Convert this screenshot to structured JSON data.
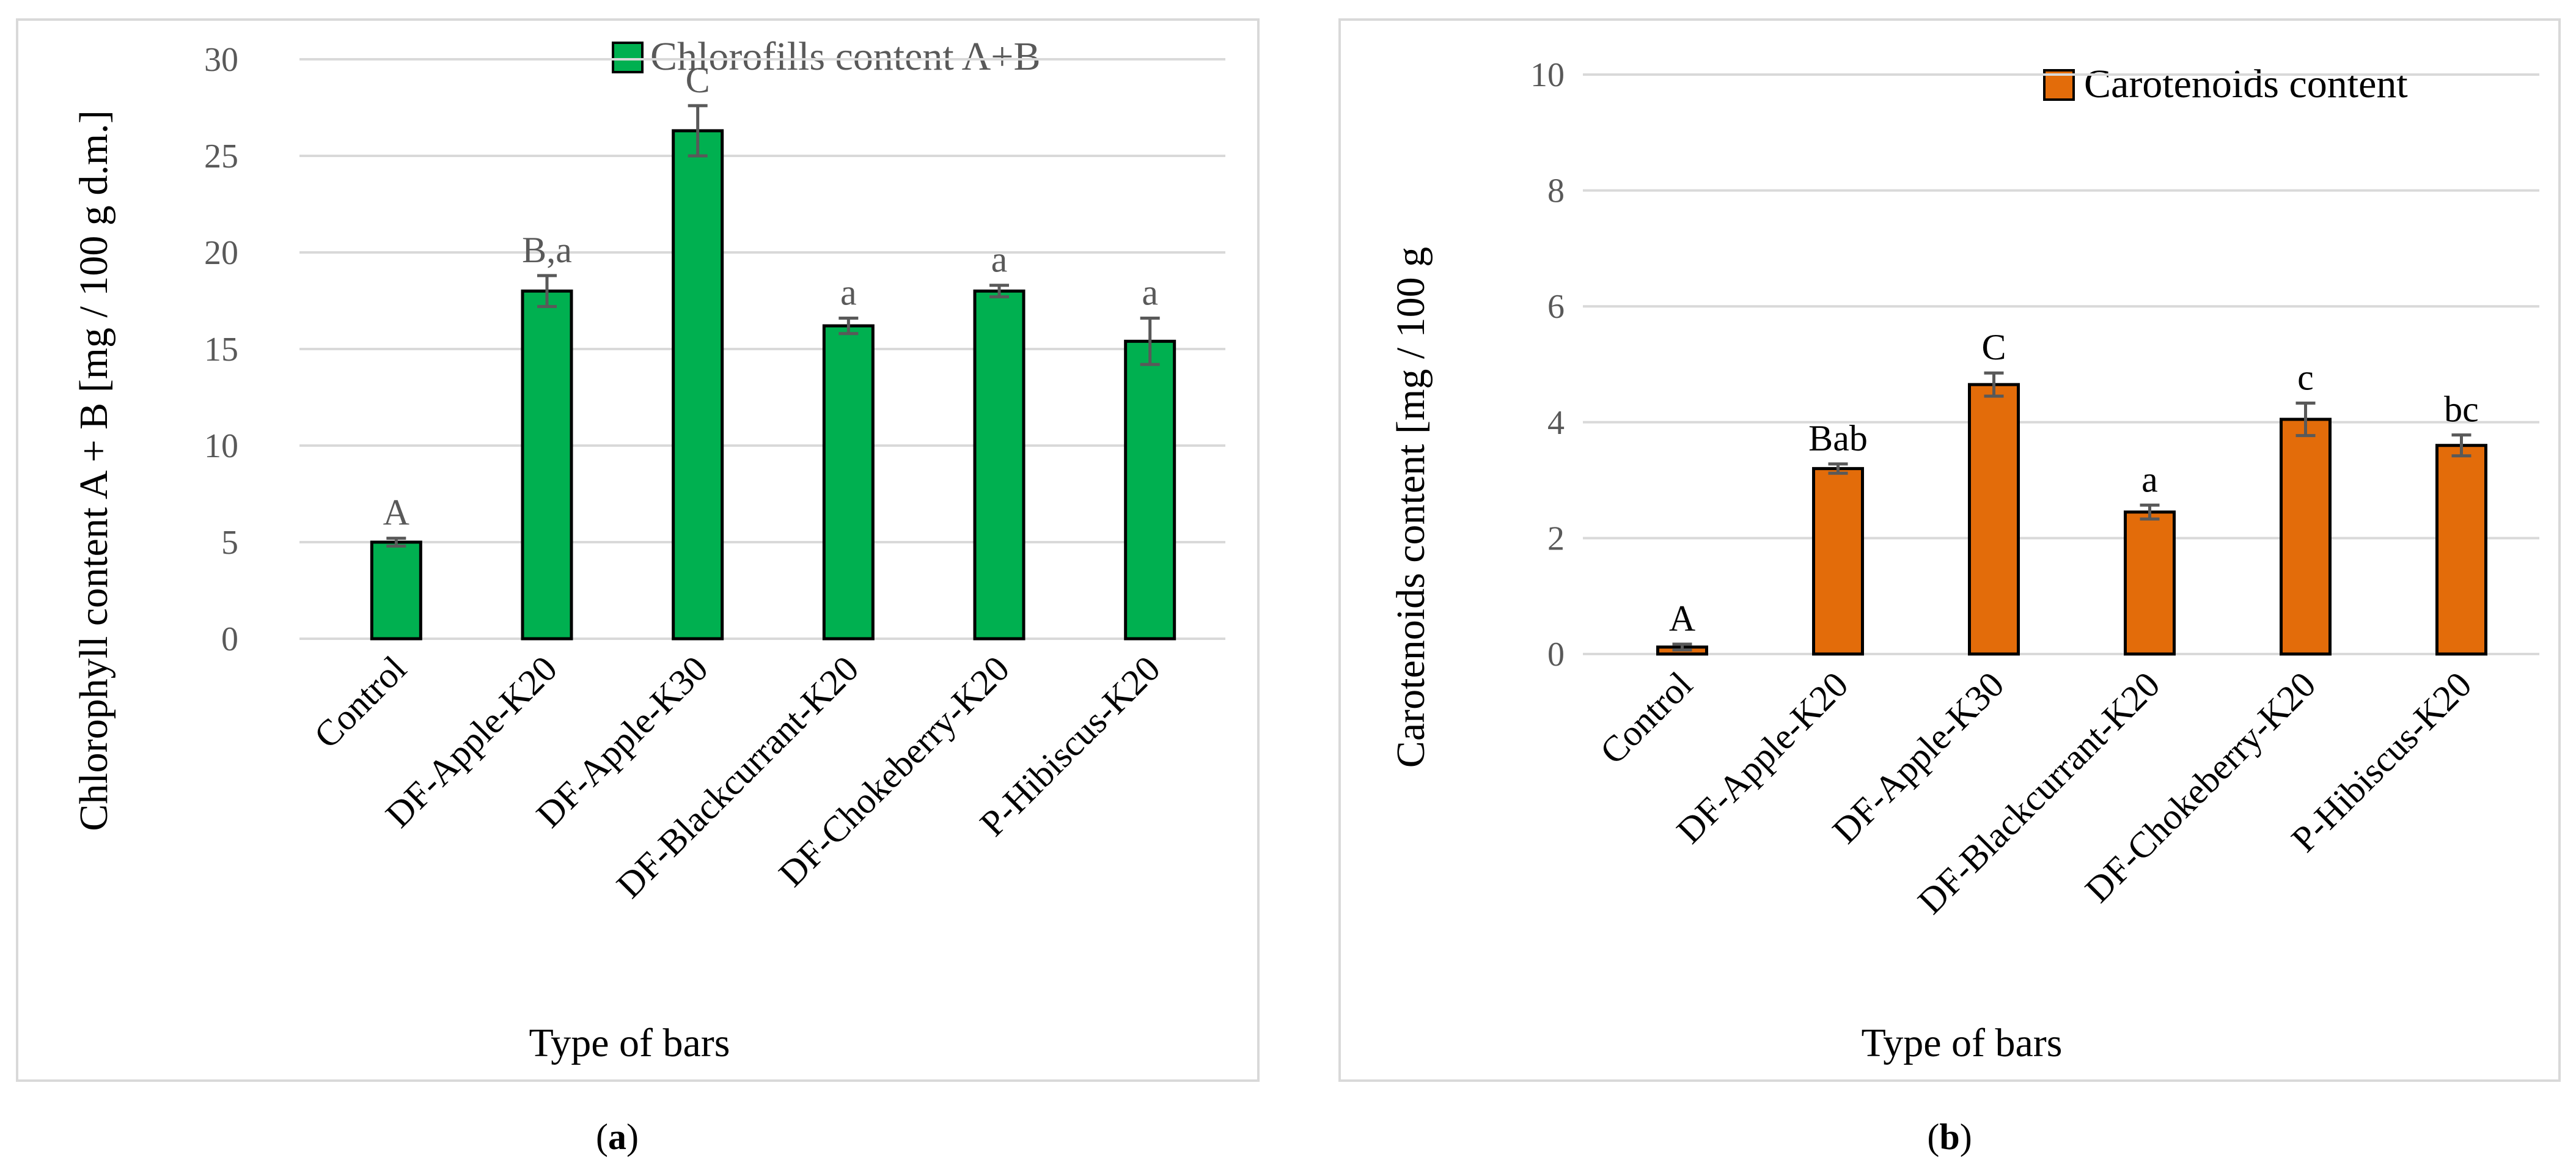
{
  "chart_data": [
    {
      "panel": "a",
      "type": "bar",
      "caption_letter": "a",
      "categories": [
        "Control",
        "DF-Apple-K20",
        "DF-Apple-K30",
        "DF-Blackcurrant-K20",
        "DF-Chokeberry-K20",
        "P-Hibiscus-K20"
      ],
      "series": [
        {
          "name": "Chlorofills content A+B",
          "color": "#00b050",
          "values": [
            5.0,
            18.0,
            26.3,
            16.2,
            18.0,
            15.4
          ],
          "errors": [
            0.2,
            0.8,
            1.3,
            0.4,
            0.3,
            1.2
          ],
          "labels": [
            "A",
            "B,a",
            "C",
            "a",
            "a",
            "a"
          ]
        }
      ],
      "xlabel": "Type of bars",
      "ylabel": "Chlorophyll content A + B [mg / 100 g d.m.]",
      "ylim": [
        0,
        30
      ],
      "yticks": [
        0,
        5,
        10,
        15,
        20,
        25,
        30
      ],
      "grid": true,
      "legend": "top-right",
      "label_color": "#595959"
    },
    {
      "panel": "b",
      "type": "bar",
      "caption_letter": "b",
      "categories": [
        "Control",
        "DF-Apple-K20",
        "DF-Apple-K30",
        "DF-Blackcurrant-K20",
        "DF-Chokeberry-K20",
        "P-Hibiscus-K20"
      ],
      "series": [
        {
          "name": "Carotenoids content",
          "color": "#e36c0a",
          "values": [
            0.12,
            3.2,
            4.65,
            2.45,
            4.05,
            3.6
          ],
          "errors": [
            0.05,
            0.08,
            0.2,
            0.12,
            0.28,
            0.18
          ],
          "labels": [
            "A",
            "Bab",
            "C",
            "a",
            "c",
            "bc"
          ]
        }
      ],
      "xlabel": "Type of bars",
      "ylabel": "Carotenoids content [mg / 100 g",
      "ylim": [
        0,
        10
      ],
      "yticks": [
        0,
        2,
        4,
        6,
        8,
        10
      ],
      "grid": true,
      "legend": "top-right",
      "label_color": "#000000"
    }
  ]
}
